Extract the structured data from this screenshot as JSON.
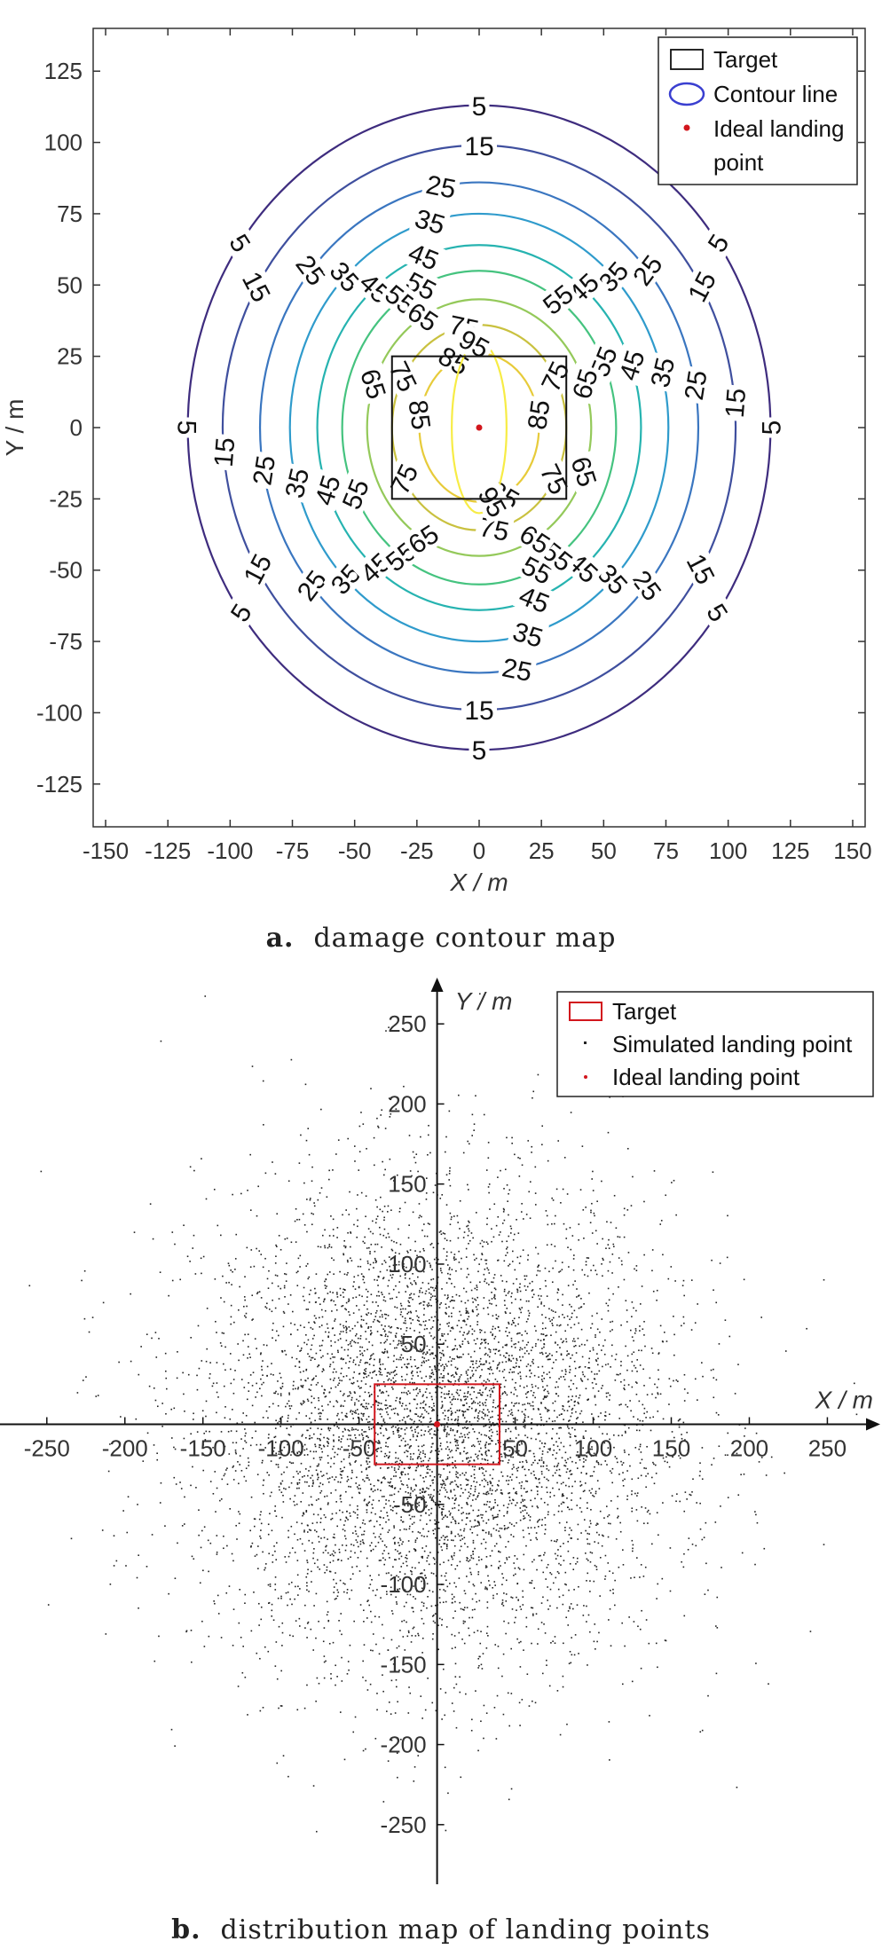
{
  "chart_data": [
    {
      "type": "contour",
      "caption_letter": "a.",
      "caption": "damage contour map",
      "xlabel": "X / m",
      "ylabel": "Y / m",
      "xlim": [
        -155,
        155
      ],
      "ylim": [
        -140,
        140
      ],
      "xticks": [
        -150,
        -125,
        -100,
        -75,
        -50,
        -25,
        0,
        25,
        50,
        75,
        100,
        125,
        150
      ],
      "yticks": [
        -125,
        -100,
        -75,
        -50,
        -25,
        0,
        25,
        50,
        75,
        100,
        125
      ],
      "contour_levels": [
        5,
        15,
        25,
        35,
        45,
        55,
        65,
        75,
        85,
        95
      ],
      "contour_semi_axes": [
        [
          117,
          113
        ],
        [
          103,
          99
        ],
        [
          88,
          86
        ],
        [
          76,
          75
        ],
        [
          65,
          64
        ],
        [
          55,
          55
        ],
        [
          45,
          45
        ],
        [
          35,
          36
        ],
        [
          24,
          26
        ],
        [
          11,
          30
        ]
      ],
      "target": {
        "x": [
          -35,
          35
        ],
        "y": [
          -25,
          25
        ]
      },
      "ideal_point": {
        "x": 0,
        "y": 0
      },
      "legend": {
        "position": "top-right",
        "entries": [
          "Target",
          "Contour line",
          "Ideal landing point"
        ]
      },
      "colors": {
        "contours": [
          "#3e2c7e",
          "#3f4f9e",
          "#3a76c0",
          "#2f9bcc",
          "#26b3b0",
          "#45c37f",
          "#94c95a",
          "#c9c13f",
          "#e7cb3a",
          "#f7ec45"
        ],
        "ideal": "#d2161d",
        "target": "#111111"
      }
    },
    {
      "type": "scatter",
      "caption_letter": "b.",
      "caption": "distribution map of landing points",
      "xlabel": "X / m",
      "ylabel": "Y / m",
      "xlim": [
        -280,
        285
      ],
      "ylim": [
        -285,
        280
      ],
      "xticks": [
        -250,
        -200,
        -150,
        -100,
        -50,
        50,
        100,
        150,
        200,
        250
      ],
      "yticks": [
        -250,
        -200,
        -150,
        -100,
        -50,
        50,
        100,
        150,
        200,
        250
      ],
      "distribution": {
        "mean": [
          0,
          0
        ],
        "sd": [
          75,
          75
        ],
        "n_points": 6000
      },
      "target": {
        "x": [
          -40,
          40
        ],
        "y": [
          -25,
          25
        ]
      },
      "ideal_point": {
        "x": 0,
        "y": 0
      },
      "legend": {
        "position": "top-right",
        "entries": [
          "Target",
          "Simulated landing point",
          "Ideal landing point"
        ]
      },
      "colors": {
        "target": "#d2161d",
        "points": "#222222",
        "ideal": "#d2161d"
      }
    }
  ]
}
